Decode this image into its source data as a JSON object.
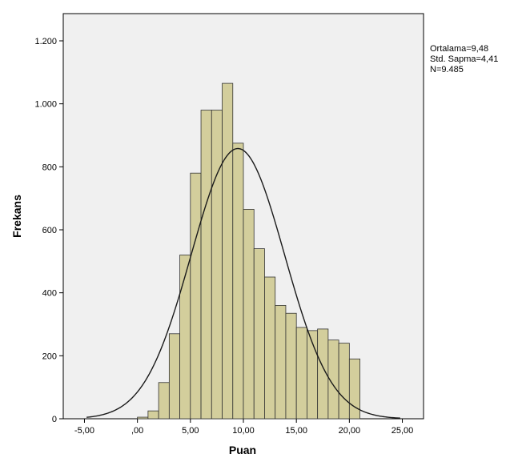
{
  "chart_data": {
    "type": "bar",
    "subtype": "histogram",
    "xlabel": "Puan",
    "ylabel": "Frekans",
    "xlim": [
      -7,
      27
    ],
    "ylim": [
      0,
      1200
    ],
    "x_ticks": [
      -5,
      0,
      5,
      10,
      15,
      20,
      25
    ],
    "x_tick_labels": [
      "-5,00",
      ",00",
      "5,00",
      "10,00",
      "15,00",
      "20,00",
      "25,00"
    ],
    "y_ticks": [
      0,
      200,
      400,
      600,
      800,
      1000,
      1200
    ],
    "y_tick_labels": [
      "0",
      "200",
      "400",
      "600",
      "800",
      "1.000",
      "1.200"
    ],
    "bin_width": 1,
    "bins": [
      {
        "x": 0,
        "count": 5
      },
      {
        "x": 1,
        "count": 25
      },
      {
        "x": 2,
        "count": 115
      },
      {
        "x": 3,
        "count": 270
      },
      {
        "x": 4,
        "count": 520
      },
      {
        "x": 5,
        "count": 780
      },
      {
        "x": 6,
        "count": 980
      },
      {
        "x": 7,
        "count": 980
      },
      {
        "x": 8,
        "count": 1065
      },
      {
        "x": 9,
        "count": 875
      },
      {
        "x": 10,
        "count": 665
      },
      {
        "x": 11,
        "count": 540
      },
      {
        "x": 12,
        "count": 450
      },
      {
        "x": 13,
        "count": 360
      },
      {
        "x": 14,
        "count": 335
      },
      {
        "x": 15,
        "count": 290
      },
      {
        "x": 16,
        "count": 280
      },
      {
        "x": 17,
        "count": 285
      },
      {
        "x": 18,
        "count": 250
      },
      {
        "x": 19,
        "count": 240
      },
      {
        "x": 20,
        "count": 190
      }
    ],
    "normal_curve": {
      "mean": 9.48,
      "sd": 4.41,
      "n": 9485
    },
    "stats_labels": [
      "Ortalama=9,48",
      "Std. Sapma=4,41",
      "N=9.485"
    ],
    "colors": {
      "plot_background": "#f0f0f0",
      "bar_fill": "#d3ce9c",
      "bar_stroke": "#333333",
      "curve": "#1a1a1a",
      "axis": "#000000"
    },
    "grid": false
  }
}
